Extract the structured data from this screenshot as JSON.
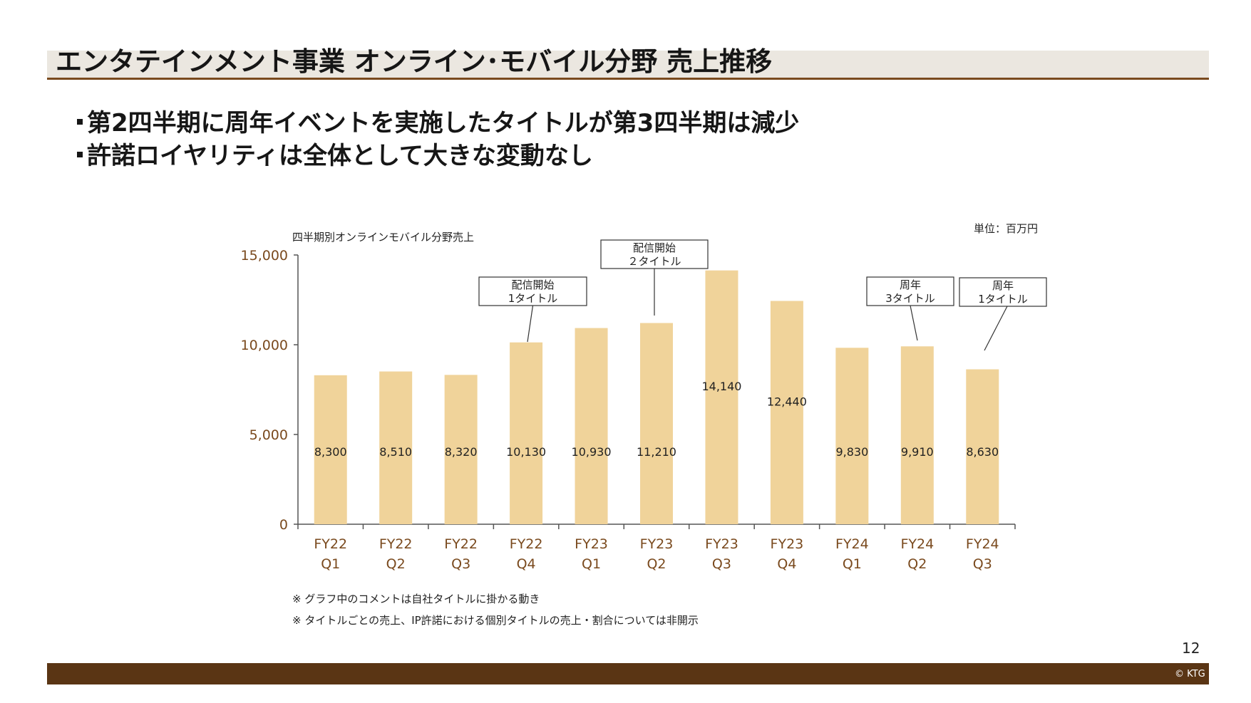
{
  "page": {
    "title": "エンタテインメント事業 オンライン･モバイル分野 売上推移",
    "bullets": [
      "第2四半期に周年イベントを実施したタイトルが第3四半期は減少",
      "許諾ロイヤリティは全体として大きな変動なし"
    ],
    "footnotes": [
      "※ グラフ中のコメントは自社タイトルに掛かる動き",
      "※ タイトルごとの売上、IP許諾における個別タイトルの売上・割合については非開示"
    ],
    "page_number": "12",
    "copyright": "© KTG"
  },
  "chart_data": {
    "type": "bar",
    "title": "四半期別オンラインモバイル分野売上",
    "unit_label": "単位：百万円",
    "categories": [
      [
        "FY22",
        "Q1"
      ],
      [
        "FY22",
        "Q2"
      ],
      [
        "FY22",
        "Q3"
      ],
      [
        "FY22",
        "Q4"
      ],
      [
        "FY23",
        "Q1"
      ],
      [
        "FY23",
        "Q2"
      ],
      [
        "FY23",
        "Q3"
      ],
      [
        "FY23",
        "Q4"
      ],
      [
        "FY24",
        "Q1"
      ],
      [
        "FY24",
        "Q2"
      ],
      [
        "FY24",
        "Q3"
      ]
    ],
    "values": [
      8300,
      8510,
      8320,
      10130,
      10930,
      11210,
      14140,
      12440,
      9830,
      9910,
      8630
    ],
    "value_labels": [
      "8,300",
      "8,510",
      "8,320",
      "10,130",
      "10,930",
      "11,210",
      "14,140",
      "12,440",
      "9,830",
      "9,910",
      "8,630"
    ],
    "ylim": [
      0,
      15000
    ],
    "yticks": [
      0,
      5000,
      10000,
      15000
    ],
    "ytick_labels": [
      "0",
      "5,000",
      "10,000",
      "15,000"
    ],
    "annotations": [
      {
        "bar_index": 3,
        "lines": [
          "配信開始",
          "1タイトル"
        ]
      },
      {
        "bar_index": 5,
        "lines": [
          "配信開始",
          "２タイトル"
        ]
      },
      {
        "bar_index": 9,
        "lines": [
          "周年",
          "3タイトル"
        ]
      },
      {
        "bar_index": 10,
        "lines": [
          "周年",
          "1タイトル"
        ]
      }
    ],
    "colors": {
      "bar": "#f0d39a",
      "axis_label": "#7a4a1e",
      "axis": "#555555"
    }
  }
}
